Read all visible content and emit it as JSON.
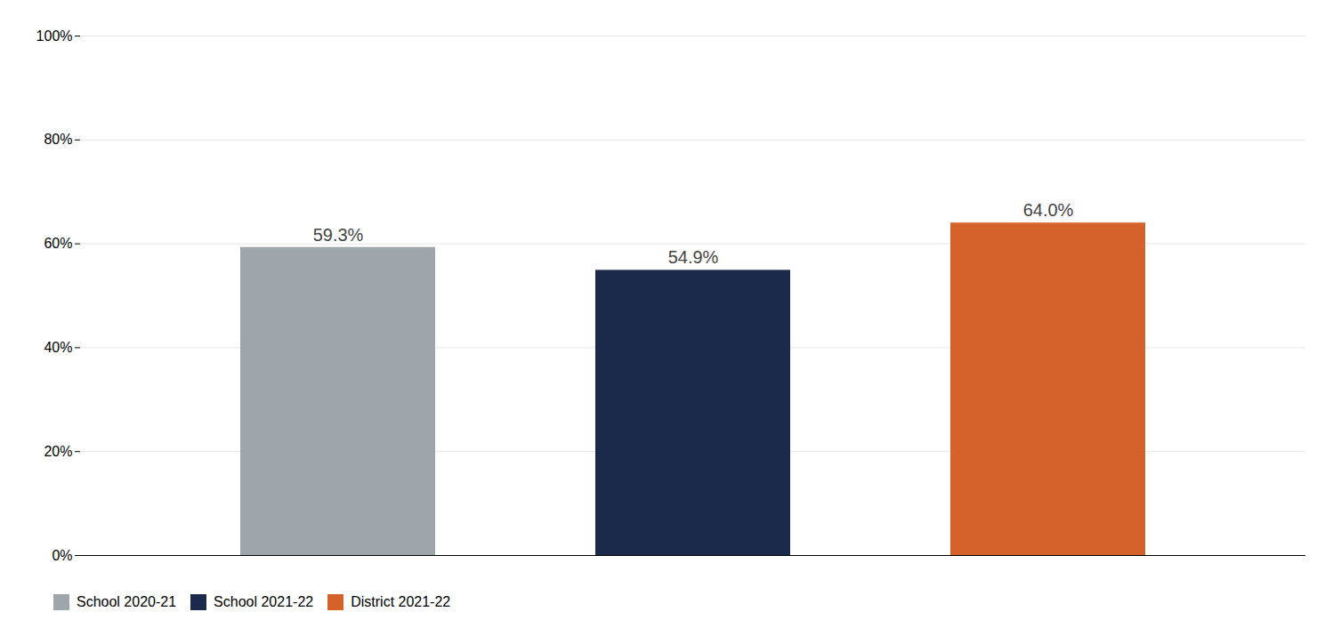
{
  "chart_data": {
    "type": "bar",
    "categories": [
      "School 2020-21",
      "School 2021-22",
      "District 2021-22"
    ],
    "values": [
      0.593,
      0.549,
      0.64
    ],
    "value_labels": [
      "59.3%",
      "54.9%",
      "64.0%"
    ],
    "data_labels": true,
    "colors": [
      "#9ea5ab",
      "#1b2a4a",
      "#d4622a"
    ],
    "ylim": [
      0,
      1.0
    ],
    "yticks": [
      {
        "value": 0.0,
        "label": "0%"
      },
      {
        "value": 0.2,
        "label": "20%"
      },
      {
        "value": 0.4,
        "label": "40%"
      },
      {
        "value": 0.6,
        "label": "60%"
      },
      {
        "value": 0.8,
        "label": "80%"
      },
      {
        "value": 1.0,
        "label": "100%"
      }
    ],
    "grid": true,
    "tick_labels": "y",
    "legend": "bottom"
  }
}
